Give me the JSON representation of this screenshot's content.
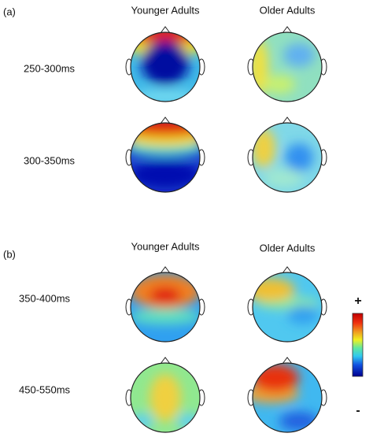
{
  "panels": [
    {
      "label": "(a)",
      "columns": [
        "Younger Adults",
        "Older Adults"
      ],
      "rows": [
        "250-300ms",
        "300-350ms"
      ]
    },
    {
      "label": "(b)",
      "columns": [
        "Younger Adults",
        "Older Adults"
      ],
      "rows": [
        "350-400ms",
        "450-550ms"
      ]
    }
  ],
  "colorbar": {
    "max_label": "+",
    "min_label": "-"
  }
}
